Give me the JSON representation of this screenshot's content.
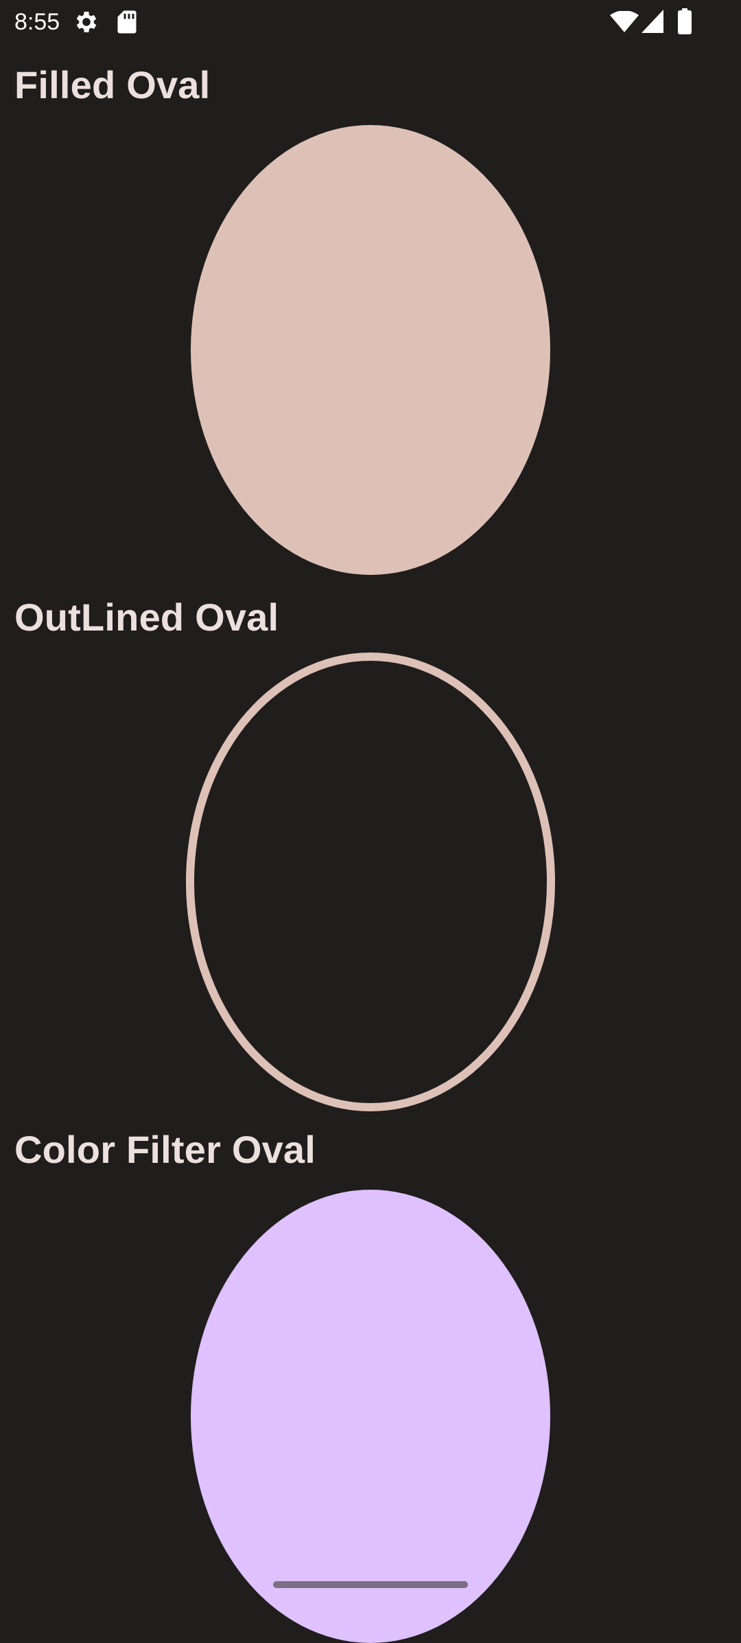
{
  "status_bar": {
    "time": "8:55",
    "left_icons": [
      "settings-gear-icon",
      "sd-card-icon"
    ],
    "right_icons": [
      "wifi-icon",
      "cell-signal-icon",
      "battery-icon"
    ]
  },
  "sections": [
    {
      "title": "Filled Oval",
      "style": "filled",
      "color": "#dec1b6"
    },
    {
      "title": "OutLined Oval",
      "style": "outlined",
      "color": "#dec1b6"
    },
    {
      "title": "Color Filter Oval",
      "style": "filled",
      "color": "#dec1fd"
    }
  ],
  "colors": {
    "background": "#201d1d",
    "title_text": "#ece0de",
    "home_indicator": "#7a6f86"
  }
}
